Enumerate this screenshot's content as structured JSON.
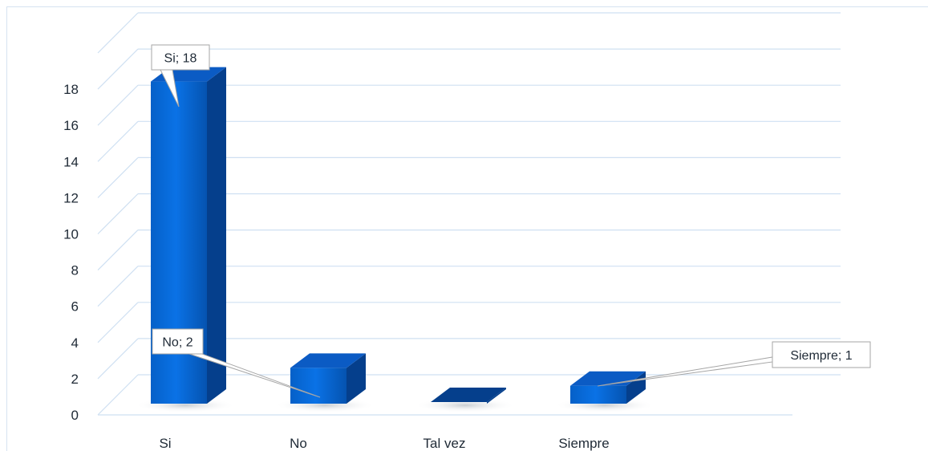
{
  "chart_data": {
    "type": "bar",
    "style": "3d-column",
    "categories": [
      "Si",
      "No",
      "Tal vez",
      "Siempre"
    ],
    "values": [
      18,
      2,
      0,
      1
    ],
    "data_labels": [
      "Si; 18",
      "No; 2",
      "",
      "Siempre; 1"
    ],
    "yticks": [
      0,
      2,
      4,
      6,
      8,
      10,
      12,
      14,
      16,
      18
    ],
    "ylim": [
      0,
      20
    ],
    "title": "",
    "xlabel": "",
    "ylabel": "",
    "grid": true,
    "legend": "none",
    "colors": {
      "front_top": "#0a6fe0",
      "front_bottom": "#0557b8",
      "side": "#053f8c",
      "top": "#0b5bc4",
      "grid": "#cfe0f2",
      "text": "#1f2a36"
    }
  }
}
